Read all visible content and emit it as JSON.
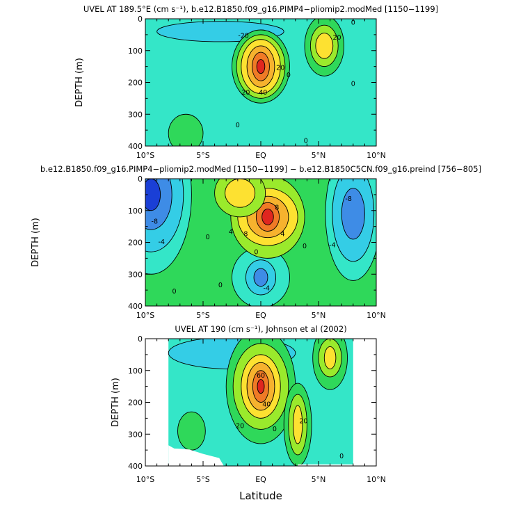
{
  "figure": {
    "x_label": "Latitude"
  },
  "colors": {
    "deep_blue": "#1a3fd6",
    "blue": "#3e8ce6",
    "light_blue": "#34cde6",
    "cyan": "#34e6c8",
    "green": "#2fd85a",
    "light_green": "#9aea2c",
    "yellow": "#fde131",
    "gold": "#f6b22e",
    "orange": "#f07a26",
    "red": "#e0261f",
    "white": "#ffffff"
  },
  "chart_data": [
    {
      "type": "contour",
      "title": "UVEL AT 189.5°E (cm s⁻¹), b.e12.B1850.f09_g16.PIMP4−pliomip2.modMed [1150−1199]",
      "ylabel": "DEPTH (m)",
      "x_ticks": [
        "10°S",
        "5°S",
        "EQ",
        "5°N",
        "10°N"
      ],
      "y_ticks": [
        "0",
        "100",
        "200",
        "300",
        "400"
      ],
      "xlim": [
        -10,
        10
      ],
      "ylim": [
        400,
        0
      ],
      "background_fill": "cyan",
      "features": [
        {
          "name": "westward-band",
          "fill": "light_blue",
          "x": -3.5,
          "y": 40,
          "rx": 5.5,
          "ry": 32
        },
        {
          "name": "euc-core",
          "fill": "red",
          "x": 0,
          "y": 150,
          "max": 80,
          "levels": [
            {
              "fill": "green",
              "rx": 2.5,
              "ry": 115
            },
            {
              "fill": "light_green",
              "rx": 2.1,
              "ry": 100
            },
            {
              "fill": "yellow",
              "rx": 1.7,
              "ry": 85
            },
            {
              "fill": "gold",
              "rx": 1.2,
              "ry": 65
            },
            {
              "fill": "orange",
              "rx": 0.75,
              "ry": 45
            },
            {
              "fill": "red",
              "rx": 0.35,
              "ry": 22
            }
          ]
        },
        {
          "name": "necc-core",
          "fill": "yellow",
          "x": 5.5,
          "y": 85,
          "max": 25,
          "levels": [
            {
              "fill": "green",
              "rx": 1.7,
              "ry": 95
            },
            {
              "fill": "light_green",
              "rx": 1.2,
              "ry": 65
            },
            {
              "fill": "yellow",
              "rx": 0.75,
              "ry": 40
            }
          ]
        },
        {
          "name": "south-subsurface",
          "fill": "green",
          "x": -6.5,
          "y": 360,
          "rx": 1.5,
          "ry": 60
        }
      ],
      "contour_labels": [
        {
          "text": "-20",
          "x": -1.5,
          "y": 55
        },
        {
          "text": "20",
          "x": 6.6,
          "y": 60
        },
        {
          "text": "0",
          "x": 8,
          "y": 13
        },
        {
          "text": "20",
          "x": 1.7,
          "y": 155
        },
        {
          "text": "40",
          "x": 0.2,
          "y": 233
        },
        {
          "text": "0",
          "x": 2.4,
          "y": 178
        },
        {
          "text": "20",
          "x": -1.3,
          "y": 233
        },
        {
          "text": "0",
          "x": 8,
          "y": 205
        },
        {
          "text": "0",
          "x": -2,
          "y": 335
        },
        {
          "text": "0",
          "x": 3.9,
          "y": 385
        }
      ]
    },
    {
      "type": "contour",
      "title": "b.e12.B1850.f09_g16.PIMP4−pliomip2.modMed [1150−1199] − b.e12.B1850C5CN.f09_g16.preind [756−805]",
      "ylabel": "DEPTH (m)",
      "x_ticks": [
        "10°S",
        "5°S",
        "EQ",
        "5°N",
        "10°N"
      ],
      "y_ticks": [
        "0",
        "100",
        "200",
        "300",
        "400"
      ],
      "xlim": [
        -10,
        10
      ],
      "ylim": [
        400,
        0
      ],
      "background_fill": "green",
      "features": [
        {
          "name": "sw-negative",
          "fill": "deep_blue",
          "x": -9.5,
          "y": 50,
          "levels": [
            {
              "fill": "cyan",
              "rx": 3.5,
              "ry": 250
            },
            {
              "fill": "light_blue",
              "rx": 2.8,
              "ry": 180
            },
            {
              "fill": "blue",
              "rx": 1.8,
              "ry": 110
            },
            {
              "fill": "deep_blue",
              "rx": 0.8,
              "ry": 50
            }
          ]
        },
        {
          "name": "se-negative",
          "fill": "blue",
          "x": 8,
          "y": 110,
          "levels": [
            {
              "fill": "cyan",
              "rx": 2.4,
              "ry": 210
            },
            {
              "fill": "light_blue",
              "rx": 1.8,
              "ry": 150
            },
            {
              "fill": "blue",
              "rx": 1.0,
              "ry": 80
            }
          ]
        },
        {
          "name": "deep-negative",
          "fill": "blue",
          "x": 0,
          "y": 310,
          "levels": [
            {
              "fill": "cyan",
              "rx": 2.5,
              "ry": 95
            },
            {
              "fill": "light_blue",
              "rx": 1.3,
              "ry": 55
            },
            {
              "fill": "blue",
              "rx": 0.6,
              "ry": 28
            }
          ]
        },
        {
          "name": "euc-positive",
          "fill": "red",
          "x": 0.6,
          "y": 120,
          "max": 16,
          "levels": [
            {
              "fill": "light_green",
              "rx": 3.2,
              "ry": 130
            },
            {
              "fill": "yellow",
              "rx": 2.6,
              "ry": 90
            },
            {
              "fill": "gold",
              "rx": 1.8,
              "ry": 65
            },
            {
              "fill": "orange",
              "rx": 1.0,
              "ry": 45
            },
            {
              "fill": "red",
              "rx": 0.5,
              "ry": 25
            }
          ]
        },
        {
          "name": "shallow-positive",
          "fill": "yellow",
          "x": -1.8,
          "y": 45,
          "levels": [
            {
              "fill": "light_green",
              "rx": 2.2,
              "ry": 75
            },
            {
              "fill": "yellow",
              "rx": 1.3,
              "ry": 45
            }
          ]
        }
      ],
      "contour_labels": [
        {
          "text": "-8",
          "x": -9.2,
          "y": 135
        },
        {
          "text": "-4",
          "x": -8.6,
          "y": 200
        },
        {
          "text": "0",
          "x": -4.6,
          "y": 185
        },
        {
          "text": "-8",
          "x": 7.6,
          "y": 65
        },
        {
          "text": "-4",
          "x": 6.2,
          "y": 210
        },
        {
          "text": "0",
          "x": 3.8,
          "y": 213
        },
        {
          "text": "4",
          "x": -2.6,
          "y": 168
        },
        {
          "text": "8",
          "x": -1.3,
          "y": 175
        },
        {
          "text": "8",
          "x": 1.4,
          "y": 92
        },
        {
          "text": "4",
          "x": 1.9,
          "y": 175
        },
        {
          "text": "0",
          "x": -0.4,
          "y": 232
        },
        {
          "text": "-4",
          "x": 0.5,
          "y": 345
        },
        {
          "text": "0",
          "x": -7.5,
          "y": 355
        },
        {
          "text": "0",
          "x": -3.5,
          "y": 335
        }
      ]
    },
    {
      "type": "contour",
      "title": "UVEL AT 190 (cm s⁻¹), Johnson et al (2002)",
      "ylabel": "DEPTH (m)",
      "x_ticks": [
        "10°S",
        "5°S",
        "EQ",
        "5°N",
        "10°N"
      ],
      "y_ticks": [
        "0",
        "100",
        "200",
        "300",
        "400"
      ],
      "xlim": [
        -10,
        10
      ],
      "ylim": [
        400,
        0
      ],
      "data_xlim": [
        -8,
        8
      ],
      "background_fill": "cyan",
      "features": [
        {
          "name": "westward-band",
          "fill": "light_blue",
          "x": -2.5,
          "y": 45,
          "rx": 5.5,
          "ry": 50
        },
        {
          "name": "euc-core",
          "fill": "red",
          "x": 0,
          "y": 150,
          "max": 90,
          "levels": [
            {
              "fill": "green",
              "rx": 3.0,
              "ry": 180
            },
            {
              "fill": "light_green",
              "rx": 2.4,
              "ry": 135
            },
            {
              "fill": "yellow",
              "rx": 1.7,
              "ry": 100
            },
            {
              "fill": "gold",
              "rx": 1.2,
              "ry": 75
            },
            {
              "fill": "orange",
              "rx": 0.7,
              "ry": 50
            },
            {
              "fill": "red",
              "rx": 0.3,
              "ry": 22
            }
          ]
        },
        {
          "name": "necc-core",
          "fill": "yellow",
          "x": 6,
          "y": 60,
          "levels": [
            {
              "fill": "green",
              "rx": 1.5,
              "ry": 100
            },
            {
              "fill": "light_green",
              "rx": 1.0,
              "ry": 60
            },
            {
              "fill": "yellow",
              "rx": 0.5,
              "ry": 35
            }
          ]
        },
        {
          "name": "sub-jet",
          "fill": "yellow",
          "x": 3.2,
          "y": 270,
          "levels": [
            {
              "fill": "green",
              "rx": 1.2,
              "ry": 130
            },
            {
              "fill": "light_green",
              "rx": 0.8,
              "ry": 95
            },
            {
              "fill": "yellow",
              "rx": 0.4,
              "ry": 60
            }
          ]
        },
        {
          "name": "south-subsurface",
          "fill": "green",
          "x": -6,
          "y": 290,
          "rx": 1.2,
          "ry": 60
        }
      ],
      "contour_labels": [
        {
          "text": "20",
          "x": -1.8,
          "y": 275
        },
        {
          "text": "40",
          "x": 0.5,
          "y": 208
        },
        {
          "text": "60",
          "x": 0,
          "y": 117
        },
        {
          "text": "0",
          "x": 1.2,
          "y": 285
        },
        {
          "text": "20",
          "x": 3.7,
          "y": 260
        },
        {
          "text": "0",
          "x": 7,
          "y": 370
        }
      ]
    }
  ]
}
